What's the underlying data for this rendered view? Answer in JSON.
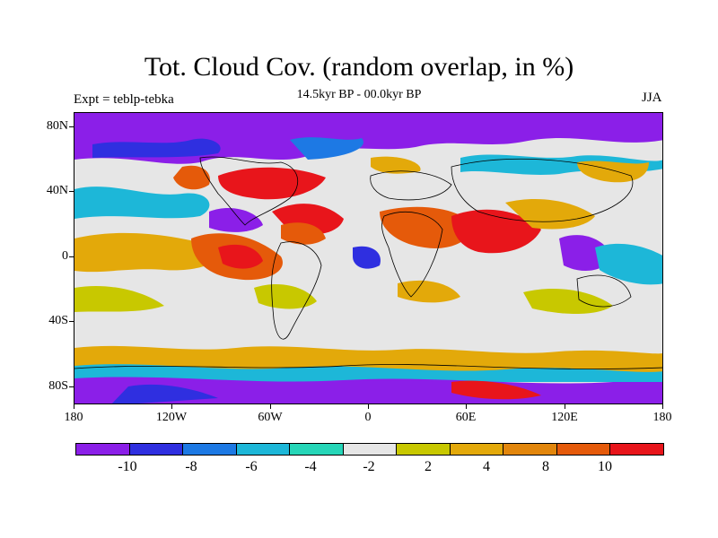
{
  "figure": {
    "title": "Tot. Cloud Cov. (random overlap, in %)",
    "subtitle": "14.5kyr BP - 00.0kyr BP",
    "experiment": "Expt = teblp-tebka",
    "season": "JJA"
  },
  "axes": {
    "latitude_labels": [
      "80N",
      "40N",
      "0",
      "40S",
      "80S"
    ],
    "longitude_labels": [
      "180",
      "120W",
      "60W",
      "0",
      "60E",
      "120E",
      "180"
    ]
  },
  "colorbar": {
    "colors": [
      "#8b1fe8",
      "#2f2fe0",
      "#1d79e4",
      "#1db7d8",
      "#26d6b8",
      "#e6e6e6",
      "#c8c800",
      "#e3a90a",
      "#e2860c",
      "#e55a0a",
      "#e8151b"
    ],
    "labels": [
      "-10",
      "-8",
      "-6",
      "-4",
      "-2",
      "2",
      "4",
      "8",
      "10"
    ]
  }
}
